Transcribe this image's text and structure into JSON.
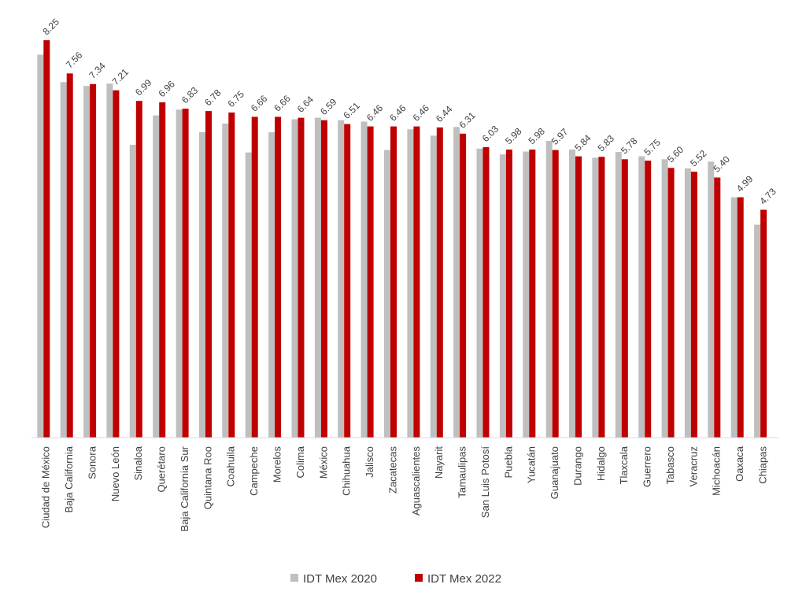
{
  "chart_data": {
    "type": "bar",
    "title": "",
    "xlabel": "",
    "ylabel": "",
    "ylim": [
      0,
      8.5
    ],
    "grid": false,
    "legend_position": "bottom",
    "categories": [
      "Ciudad de México",
      "Baja California",
      "Sonora",
      "Nuevo León",
      "Sinaloa",
      "Querétaro",
      "Baja California Sur",
      "Quintana Roo",
      "Coahuila",
      "Campeche",
      "Morelos",
      "Colima",
      "México",
      "Chihuahua",
      "Jalisco",
      "Zacatecas",
      "Aguascalientes",
      "Nayarit",
      "Tamaulipas",
      "San Luis Potosí",
      "Puebla",
      "Yucatán",
      "Guanajuato",
      "Durango",
      "Hidalgo",
      "Tlaxcala",
      "Guerrero",
      "Tabasco",
      "Veracruz",
      "Michoacán",
      "Oaxaca",
      "Chiapas"
    ],
    "series": [
      {
        "name": "IDT Mex 2020",
        "color": "#bfbfbf",
        "values": [
          7.95,
          7.38,
          7.3,
          7.35,
          6.08,
          6.69,
          6.81,
          6.34,
          6.52,
          5.92,
          6.34,
          6.61,
          6.64,
          6.59,
          6.56,
          5.97,
          6.4,
          6.27,
          6.45,
          6.0,
          5.88,
          5.94,
          6.16,
          5.98,
          5.81,
          5.93,
          5.84,
          5.78,
          5.59,
          5.73,
          4.99,
          4.42
        ]
      },
      {
        "name": "IDT Mex 2022",
        "color": "#c00000",
        "values": [
          8.25,
          7.56,
          7.34,
          7.21,
          6.99,
          6.96,
          6.83,
          6.78,
          6.75,
          6.66,
          6.66,
          6.64,
          6.59,
          6.51,
          6.46,
          6.46,
          6.46,
          6.44,
          6.31,
          6.03,
          5.98,
          5.98,
          5.97,
          5.84,
          5.83,
          5.78,
          5.75,
          5.6,
          5.52,
          5.4,
          4.99,
          4.73
        ]
      }
    ],
    "data_labels": [
      "8.25",
      "7.56",
      "7.34",
      "7.21",
      "6.99",
      "6.96",
      "6.83",
      "6.78",
      "6.75",
      "6.66",
      "6.66",
      "6.64",
      "6.59",
      "6.51",
      "6.46",
      "6.46",
      "6.46",
      "6.44",
      "6.31",
      "6.03",
      "5.98",
      "5.98",
      "5.97",
      "5.84",
      "5.83",
      "5.78",
      "5.75",
      "5.60",
      "5.52",
      "5.40",
      "4.99",
      "4.73"
    ]
  }
}
